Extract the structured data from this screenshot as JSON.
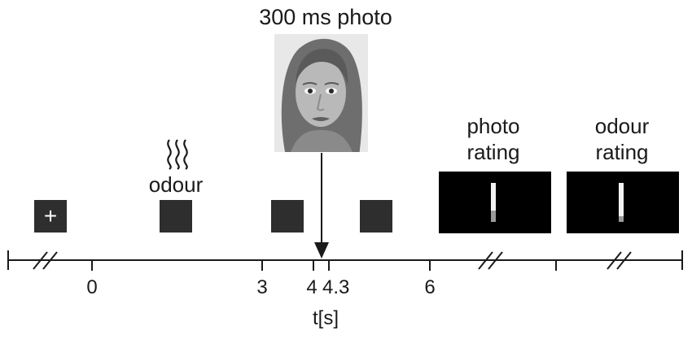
{
  "title": "300 ms photo",
  "odour_label": "odour",
  "odour_icon": "odour-wave-icon",
  "photo_rating_label": [
    "photo",
    "rating"
  ],
  "odour_rating_label": [
    "odour",
    "rating"
  ],
  "fixation_symbol": "+",
  "axis_label": "t[s]",
  "ticks": [
    "0",
    "3",
    "4",
    "4.3",
    "6"
  ],
  "photo_rating_level": 0.3,
  "odour_rating_level": 0.15,
  "face_photo": "grayscale-face-photo",
  "colors": {
    "dark_square": "#2e2e2e",
    "screen": "#000000",
    "axis": "#1a1a1a"
  }
}
